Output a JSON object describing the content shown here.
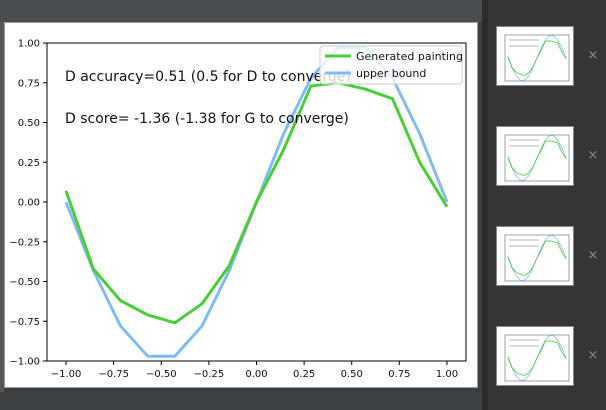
{
  "chart_data": {
    "type": "line",
    "xlim": [
      -1.1,
      1.1
    ],
    "ylim": [
      -1.0,
      1.0
    ],
    "xticks": [
      -1.0,
      -0.75,
      -0.5,
      -0.25,
      0.0,
      0.25,
      0.5,
      0.75,
      1.0
    ],
    "xtick_labels": [
      "−1.00",
      "−0.75",
      "−0.50",
      "−0.25",
      "0.00",
      "0.25",
      "0.50",
      "0.75",
      "1.00"
    ],
    "yticks": [
      1.0,
      0.75,
      0.5,
      0.25,
      0.0,
      -0.25,
      -0.5,
      -0.75,
      -1.0
    ],
    "ytick_labels": [
      "1.00",
      "0.75",
      "0.50",
      "0.25",
      "0.00",
      "−0.25",
      "−0.50",
      "−0.75",
      "−1.00"
    ],
    "x": [
      -1.0,
      -0.857,
      -0.714,
      -0.571,
      -0.429,
      -0.286,
      -0.143,
      0.0,
      0.143,
      0.286,
      0.429,
      0.571,
      0.714,
      0.857,
      1.0
    ],
    "series": [
      {
        "name": "Generated painting",
        "color": "#4ccc3a",
        "values": [
          0.07,
          -0.42,
          -0.62,
          -0.71,
          -0.76,
          -0.64,
          -0.4,
          0.0,
          0.33,
          0.73,
          0.75,
          0.71,
          0.65,
          0.25,
          -0.03
        ]
      },
      {
        "name": "upper bound",
        "color": "#7fbcf4",
        "values": [
          0.0,
          -0.43,
          -0.78,
          -0.97,
          -0.97,
          -0.78,
          -0.43,
          0.0,
          0.43,
          0.78,
          0.97,
          0.97,
          0.78,
          0.43,
          0.0
        ]
      }
    ],
    "annotations": [
      "D accuracy=0.51 (0.5 for D to converge)",
      "D score= -1.36 (-1.38 for G to converge)"
    ],
    "legend_position": "top-right",
    "grid": false
  },
  "sidebar": {
    "close_glyph": "×",
    "thumbnails": [
      {
        "name": "thumbnail-1"
      },
      {
        "name": "thumbnail-2"
      },
      {
        "name": "thumbnail-3"
      },
      {
        "name": "thumbnail-4"
      }
    ]
  }
}
